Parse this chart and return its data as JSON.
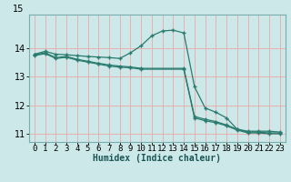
{
  "title": "",
  "xlabel": "Humidex (Indice chaleur)",
  "bg_color": "#cce8e8",
  "grid_color": "#e8b0b0",
  "line_color": "#2a7a6e",
  "xlim": [
    -0.5,
    23.5
  ],
  "ylim": [
    10.7,
    15.2
  ],
  "yticks": [
    11,
    12,
    13,
    14
  ],
  "ytick_top": 15,
  "xticks": [
    0,
    1,
    2,
    3,
    4,
    5,
    6,
    7,
    8,
    9,
    10,
    11,
    12,
    13,
    14,
    15,
    16,
    17,
    18,
    19,
    20,
    21,
    22,
    23
  ],
  "series1_x": [
    0,
    1,
    2,
    3,
    4,
    5,
    6,
    7,
    8,
    9,
    10,
    11,
    12,
    13,
    14,
    15,
    16,
    17,
    18,
    19,
    20,
    21,
    22,
    23
  ],
  "series1_y": [
    13.8,
    13.9,
    13.8,
    13.78,
    13.75,
    13.72,
    13.7,
    13.68,
    13.65,
    13.85,
    14.1,
    14.45,
    14.62,
    14.65,
    14.55,
    12.65,
    11.9,
    11.75,
    11.55,
    11.15,
    11.08,
    11.08,
    11.08,
    11.05
  ],
  "series2_x": [
    0,
    1,
    2,
    3,
    4,
    5,
    6,
    7,
    8,
    9,
    10,
    14,
    15,
    16,
    17,
    18,
    19,
    20,
    21,
    22,
    23
  ],
  "series2_y": [
    13.78,
    13.85,
    13.68,
    13.72,
    13.62,
    13.55,
    13.48,
    13.42,
    13.38,
    13.35,
    13.3,
    13.3,
    11.6,
    11.5,
    11.42,
    11.3,
    11.15,
    11.05,
    11.05,
    11.02,
    11.02
  ],
  "series3_x": [
    0,
    1,
    2,
    3,
    4,
    5,
    6,
    7,
    8,
    9,
    10,
    14,
    15,
    16,
    17,
    18,
    19,
    20,
    21,
    22,
    23
  ],
  "series3_y": [
    13.75,
    13.82,
    13.65,
    13.69,
    13.59,
    13.52,
    13.45,
    13.38,
    13.34,
    13.32,
    13.27,
    13.27,
    11.55,
    11.45,
    11.38,
    11.27,
    11.12,
    11.02,
    11.02,
    10.99,
    10.99
  ],
  "marker": "+",
  "markersize": 3.5,
  "linewidth": 0.9,
  "xlabel_fontsize": 7,
  "tick_fontsize": 6.5,
  "ytick_fontsize": 7
}
